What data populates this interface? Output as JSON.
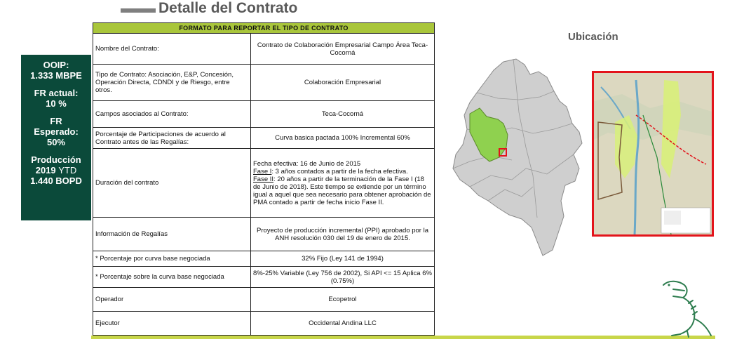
{
  "header": {
    "title": "Detalle del Contrato"
  },
  "kpi": {
    "ooip_label": "OOIP:",
    "ooip_value": "1.333 MBPE",
    "fr_actual_label": "FR actual:",
    "fr_actual_value": "10 %",
    "fr_esperado_label1": "FR",
    "fr_esperado_label2": "Esperado:",
    "fr_esperado_value": "50%",
    "produccion_label": "Producción",
    "produccion_year": "2019",
    "produccion_ytd": "YTD",
    "produccion_value": "1.440 BOPD"
  },
  "table": {
    "header": "FORMATO PARA REPORTAR EL TIPO DE CONTRATO",
    "rows": [
      {
        "label": "Nombre del Contrato:",
        "value": "Contrato de Colaboración Empresarial Campo Área Teca-Cocorná"
      },
      {
        "label": "Tipo de Contrato: Asociación, E&P, Concesión, Operación Directa, CDNDI y de Riesgo, entre otros.",
        "value": "Colaboración Empresarial"
      },
      {
        "label": "Campos asociados al Contrato:",
        "value": "Teca-Cocorná"
      },
      {
        "label": "Porcentaje de Participaciones de acuerdo al Contrato antes de las Regalías:",
        "value": "Curva basica pactada 100%  Incremental  60%"
      },
      {
        "label": "Información de Regalías",
        "value": "Proyecto de producción incremental (PPI) aprobado por la ANH resolución 030 del 19 de enero de 2015."
      },
      {
        "label": "*    Porcentaje por curva base negociada",
        "value": "32% Fijo (Ley 141 de 1994)"
      },
      {
        "label": "*    Porcentaje sobre la curva base negociada",
        "value": "8%-25% Variable (Ley 756 de 2002), Si API <= 15 Aplica 6% (0.75%)"
      },
      {
        "label": "Operador",
        "value": "Ecopetrol"
      },
      {
        "label": "Ejecutor",
        "value": "Occidental Andina LLC"
      }
    ],
    "duracion": {
      "label": "Duración del contrato",
      "line1": "Fecha efectiva: 16 de Junio de 2015",
      "fase1_tag": "Fase I",
      "fase1_text": ": 3 años contados a partir de la fecha efectiva.",
      "fase2_tag": "Fase II",
      "fase2_text": ": 20 años a partir de la terminación de la Fase I (18 de Junio de 2018).  Este tiempo se extiende por un término igual a aquel que sea necesario para obtener aprobación de PMA contado a partir de fecha inicio Fase II."
    }
  },
  "ubicacion": {
    "label": "Ubicación"
  },
  "colors": {
    "kpi_bg": "#0b4a3a",
    "table_header": "#a9c63b",
    "inset_border": "#e3141b",
    "field_green": "#8fd14f"
  }
}
